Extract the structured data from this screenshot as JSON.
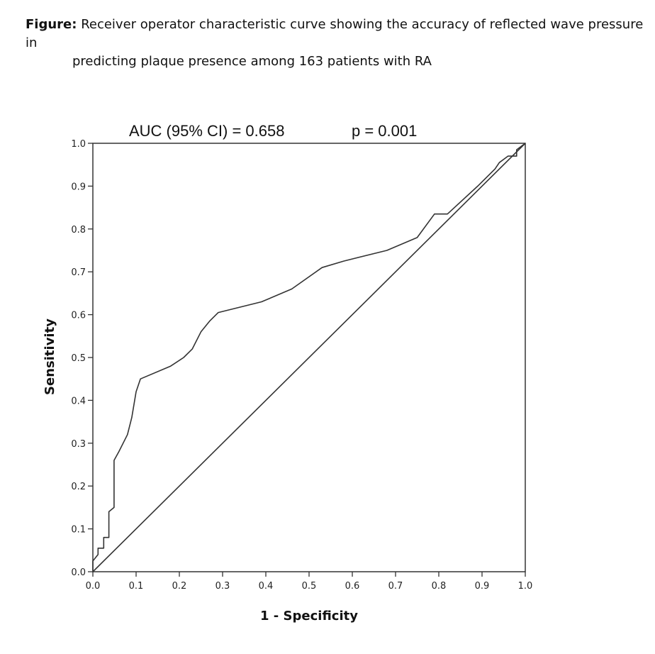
{
  "caption": {
    "label": "Figure:",
    "line1": "Receiver operator characteristic curve showing the accuracy of reflected wave pressure in",
    "line2": "predicting plaque presence among 163 patients with RA"
  },
  "chart_data": {
    "type": "line",
    "title": "",
    "annotations": [
      "AUC (95% CI) = 0.658",
      "p = 0.001"
    ],
    "xlabel": "1 - Specificity",
    "ylabel": "Sensitivity",
    "xlim": [
      0,
      1
    ],
    "ylim": [
      0,
      1
    ],
    "x_ticks": [
      "0.0",
      "0.1",
      "0.2",
      "0.3",
      "0.4",
      "0.5",
      "0.6",
      "0.7",
      "0.8",
      "0.9",
      "1.0"
    ],
    "y_ticks": [
      "0.0",
      "0.1",
      "0.2",
      "0.3",
      "0.4",
      "0.5",
      "0.6",
      "0.7",
      "0.8",
      "0.9",
      "1.0"
    ],
    "grid": false,
    "legend": "none",
    "series": [
      {
        "x": [
          0.0,
          0.0,
          0.012,
          0.012,
          0.025,
          0.025,
          0.037,
          0.037,
          0.049,
          0.049,
          0.06,
          0.08,
          0.09,
          0.1,
          0.11,
          0.18,
          0.21,
          0.23,
          0.25,
          0.27,
          0.29,
          0.39,
          0.46,
          0.53,
          0.58,
          0.68,
          0.75,
          0.79,
          0.82,
          0.89,
          0.93,
          0.94,
          0.96,
          0.98,
          0.98,
          1.0
        ],
        "y": [
          0.0,
          0.025,
          0.04,
          0.055,
          0.055,
          0.08,
          0.08,
          0.14,
          0.15,
          0.26,
          0.28,
          0.32,
          0.36,
          0.42,
          0.45,
          0.48,
          0.5,
          0.52,
          0.56,
          0.585,
          0.605,
          0.63,
          0.66,
          0.71,
          0.725,
          0.75,
          0.78,
          0.835,
          0.835,
          0.9,
          0.94,
          0.955,
          0.97,
          0.97,
          0.985,
          1.0
        ]
      },
      {
        "x": [
          0.0,
          1.0
        ],
        "y": [
          0.0,
          1.0
        ]
      }
    ]
  }
}
